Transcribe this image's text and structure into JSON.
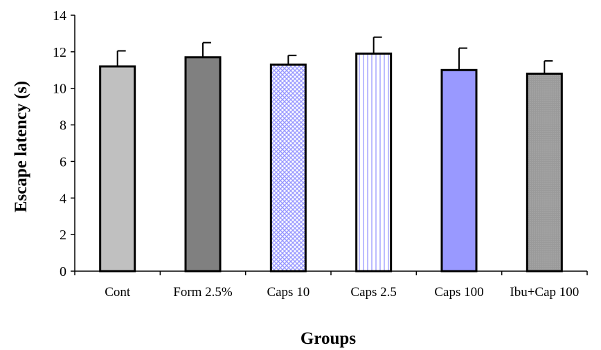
{
  "chart_data": {
    "type": "bar",
    "title": "",
    "xlabel": "Groups",
    "ylabel": "Escape latency (s)",
    "ylim": [
      0,
      14
    ],
    "yticks": [
      0,
      2,
      4,
      6,
      8,
      10,
      12,
      14
    ],
    "grid": false,
    "categories": [
      "Cont",
      "Form 2.5%",
      "Caps 10",
      "Caps 2.5",
      "Caps 100",
      "Ibu+Cap 100"
    ],
    "values": [
      11.2,
      11.7,
      11.3,
      11.9,
      11.0,
      10.8
    ],
    "errors": [
      0.85,
      0.8,
      0.5,
      0.9,
      1.2,
      0.7
    ],
    "bar_fills": [
      {
        "pattern": "solid",
        "color": "#c0c0c0"
      },
      {
        "pattern": "solid",
        "color": "#808080"
      },
      {
        "pattern": "crosshatch",
        "color": "#9999ff"
      },
      {
        "pattern": "vertical-lines",
        "color": "#9999ff"
      },
      {
        "pattern": "solid",
        "color": "#9999ff"
      },
      {
        "pattern": "dots",
        "color": "#9a9a9a"
      }
    ]
  }
}
